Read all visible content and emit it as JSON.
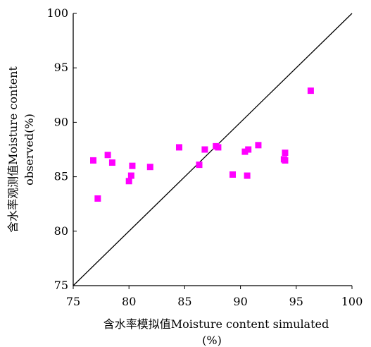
{
  "chart_data": {
    "type": "scatter",
    "title": "",
    "xlabel": "含水率模拟值Moisture content simulated",
    "xlabel_unit": "(%)",
    "ylabel": "含水率观测值Moisture content",
    "ylabel_line2": "observed(%)",
    "xlim": [
      75,
      100
    ],
    "ylim": [
      75,
      100
    ],
    "xticks": [
      "75",
      "80",
      "85",
      "90",
      "95",
      "100"
    ],
    "yticks": [
      "75",
      "80",
      "85",
      "90",
      "95",
      "100"
    ],
    "grid": false,
    "legend": "none",
    "reference_line": {
      "from": [
        75,
        75
      ],
      "to": [
        100,
        100
      ]
    },
    "series": [
      {
        "color": "#ff00ff",
        "marker": "square",
        "points": [
          [
            76.8,
            86.5
          ],
          [
            77.2,
            83.0
          ],
          [
            78.1,
            87.0
          ],
          [
            78.5,
            86.3
          ],
          [
            80.0,
            84.6
          ],
          [
            80.2,
            85.1
          ],
          [
            80.3,
            86.0
          ],
          [
            81.9,
            85.9
          ],
          [
            84.5,
            87.7
          ],
          [
            86.3,
            86.1
          ],
          [
            86.8,
            87.5
          ],
          [
            87.8,
            87.8
          ],
          [
            88.0,
            87.7
          ],
          [
            89.3,
            85.2
          ],
          [
            90.4,
            87.3
          ],
          [
            90.6,
            85.1
          ],
          [
            90.7,
            87.5
          ],
          [
            91.6,
            87.9
          ],
          [
            93.9,
            86.6
          ],
          [
            94.0,
            87.2
          ],
          [
            94.0,
            86.5
          ],
          [
            96.3,
            92.9
          ]
        ]
      }
    ]
  }
}
